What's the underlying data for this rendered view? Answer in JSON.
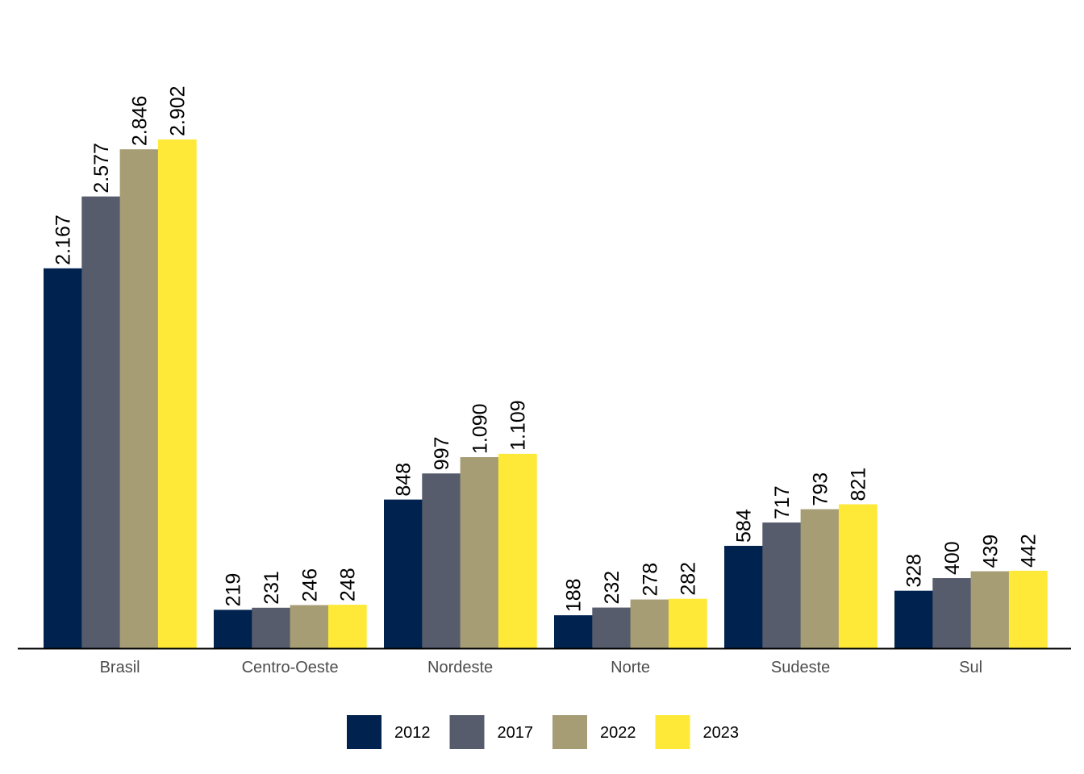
{
  "chart_data": {
    "type": "bar",
    "title": "",
    "xlabel": "",
    "ylabel": "",
    "categories": [
      "Brasil",
      "Centro-Oeste",
      "Nordeste",
      "Norte",
      "Sudeste",
      "Sul"
    ],
    "series": [
      {
        "name": "2012",
        "color": "#00224e",
        "values": [
          2167,
          219,
          848,
          188,
          584,
          328
        ],
        "labels": [
          "2.167",
          "219",
          "848",
          "188",
          "584",
          "328"
        ]
      },
      {
        "name": "2017",
        "color": "#565c6c",
        "values": [
          2577,
          231,
          997,
          232,
          717,
          400
        ],
        "labels": [
          "2.577",
          "231",
          "997",
          "232",
          "717",
          "400"
        ]
      },
      {
        "name": "2022",
        "color": "#a69d75",
        "values": [
          2846,
          246,
          1090,
          278,
          793,
          439
        ],
        "labels": [
          "2.846",
          "246",
          "1.090",
          "278",
          "793",
          "439"
        ]
      },
      {
        "name": "2023",
        "color": "#fee838",
        "values": [
          2902,
          248,
          1109,
          282,
          821,
          442
        ],
        "labels": [
          "2.902",
          "248",
          "1.109",
          "282",
          "821",
          "442"
        ]
      }
    ],
    "ylim": [
      0,
      3300
    ],
    "grid": false,
    "legend": "bottom",
    "data_labels": "rotated-vertical"
  }
}
